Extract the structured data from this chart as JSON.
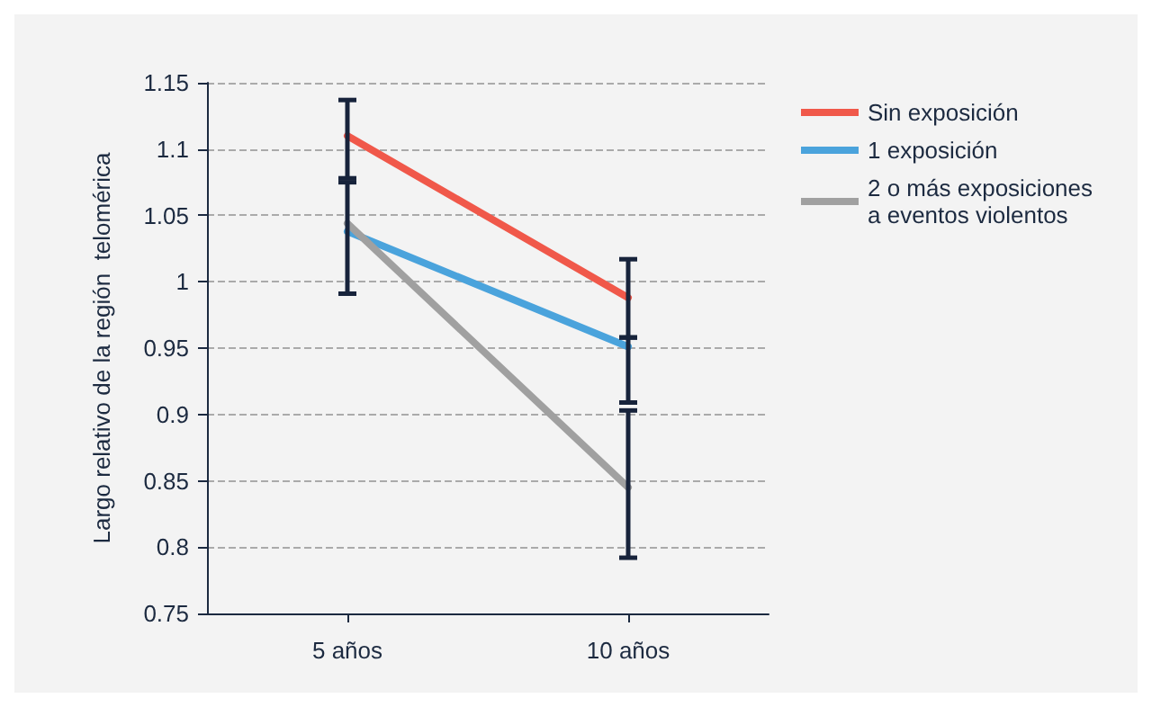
{
  "chart_data": {
    "type": "line",
    "ylabel": "Largo relativo de la región  telomérica",
    "categories": [
      "5 años",
      "10 años"
    ],
    "series": [
      {
        "name": "Sin exposición",
        "color": "#f0584a",
        "values": [
          1.11,
          0.988
        ],
        "errors": [
          [
            1.078,
            1.137
          ],
          [
            0.958,
            1.017
          ]
        ]
      },
      {
        "name": "1 exposición",
        "color": "#4aa3dc",
        "values": [
          1.038,
          0.951
        ],
        "errors": [
          [
            0.991,
            1.075
          ],
          [
            0.909,
            0.958
          ]
        ]
      },
      {
        "name": "2 o más exposiciones\na eventos violentos",
        "color": "#a0a0a0",
        "values": [
          1.044,
          0.845
        ],
        "errors": [
          null,
          [
            0.792,
            0.903
          ]
        ]
      }
    ],
    "ylim": [
      0.75,
      1.15
    ],
    "yticks": [
      0.75,
      0.8,
      0.85,
      0.9,
      0.95,
      1,
      1.05,
      1.1,
      1.15
    ],
    "grid": "y",
    "legend": "top right",
    "marker": "none",
    "line_style": "solid"
  }
}
